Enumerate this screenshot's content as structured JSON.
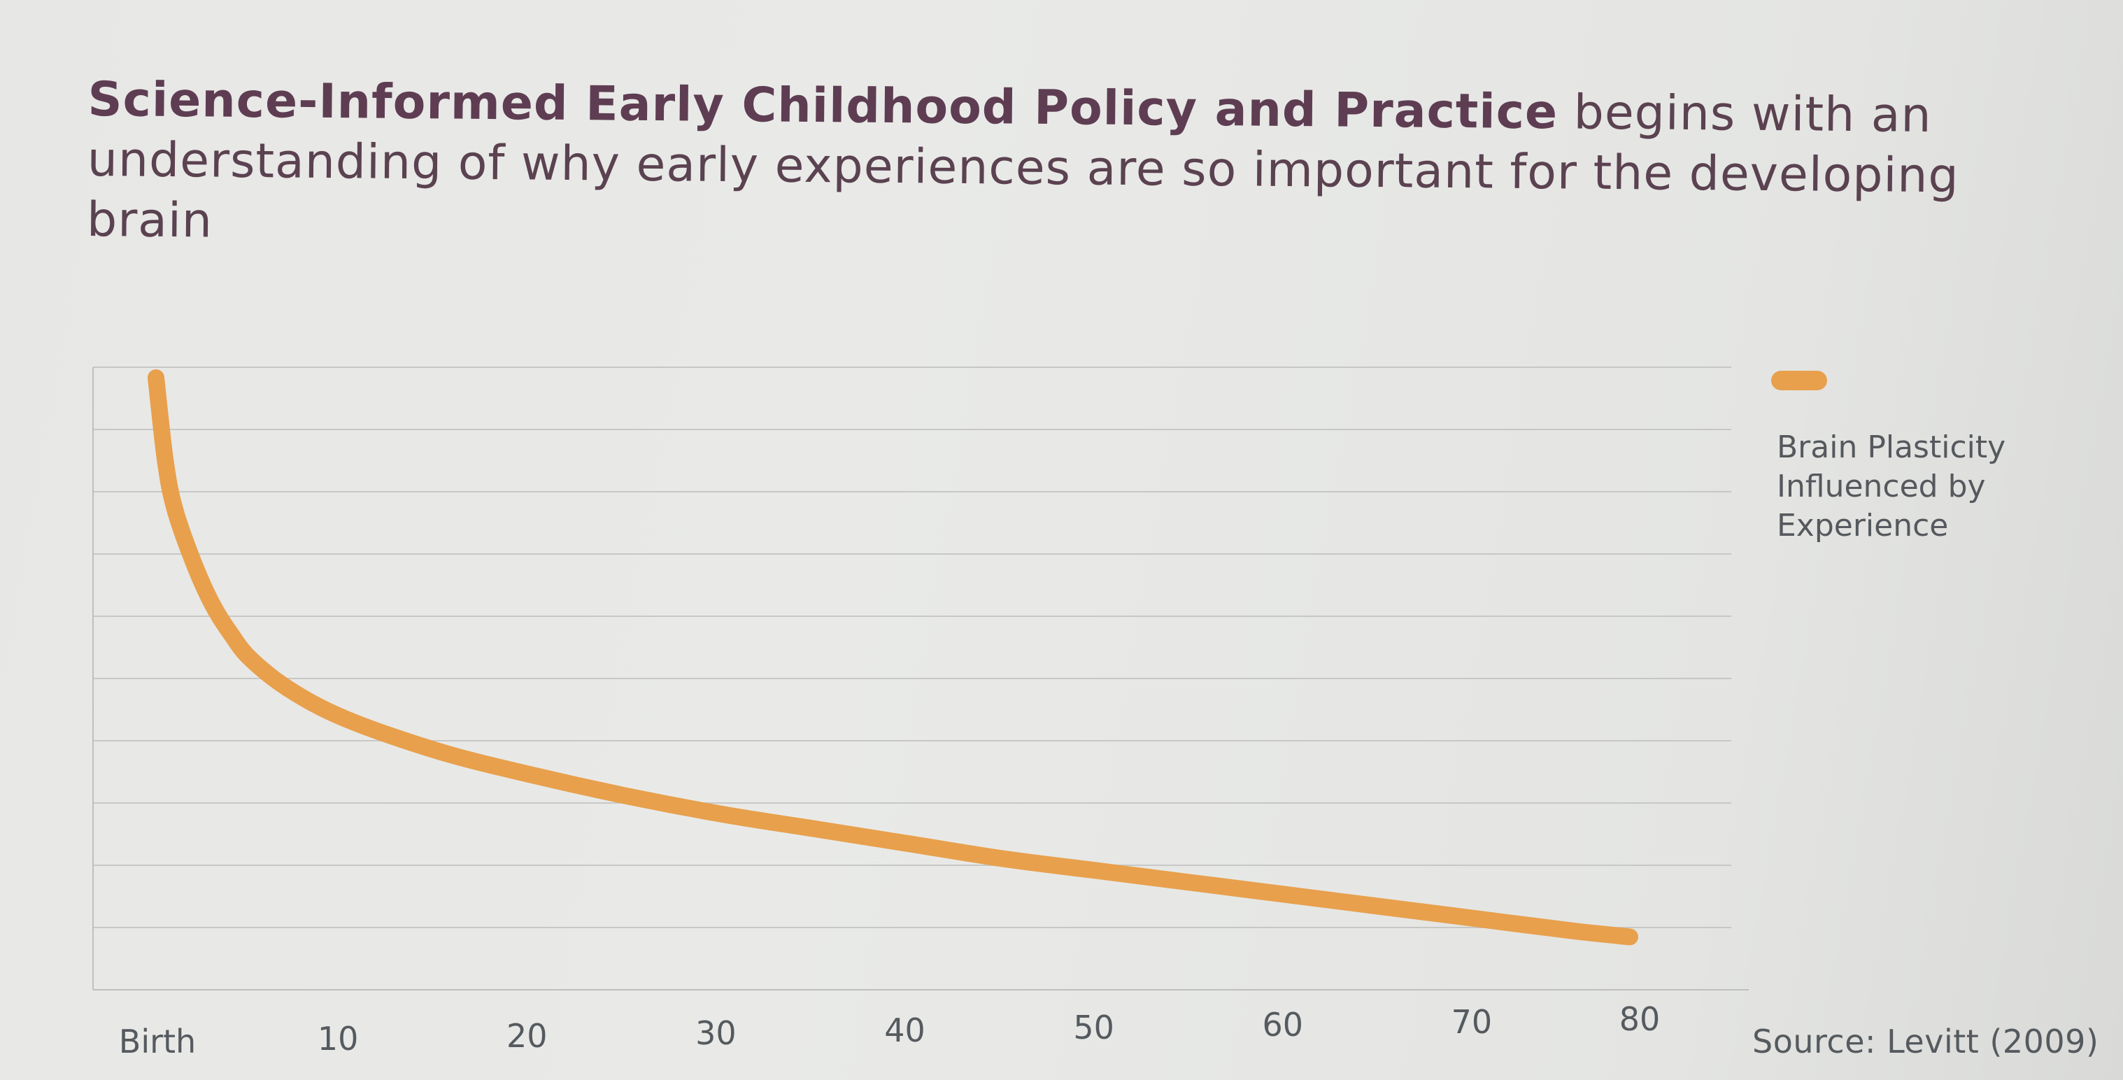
{
  "slide": {
    "headline_bold": "Science-Informed Early Childhood Policy and Practice",
    "headline_regular": " begins with an understanding of why early experiences are so important for the developing brain",
    "source": "Source: Levitt (2009)"
  },
  "chart_data": {
    "type": "line",
    "title": "",
    "xlabel": "",
    "ylabel": "",
    "x_tick_labels": [
      "Birth",
      "10",
      "20",
      "30",
      "40",
      "50",
      "60",
      "70",
      "80"
    ],
    "xlim": [
      0,
      86
    ],
    "ylim": [
      0,
      10
    ],
    "grid": true,
    "legend_placement": "right",
    "series": [
      {
        "name": "Brain Plasticity Influenced by Experience",
        "color": "#e8a04c",
        "x": [
          0,
          0.5,
          1,
          2,
          3,
          4,
          5,
          7,
          10,
          15,
          20,
          25,
          30,
          35,
          40,
          45,
          50,
          55,
          60,
          65,
          70,
          75,
          78
        ],
        "y": [
          10.0,
          8.6,
          7.8,
          6.9,
          6.2,
          5.7,
          5.3,
          4.8,
          4.3,
          3.75,
          3.35,
          3.0,
          2.7,
          2.45,
          2.2,
          1.95,
          1.75,
          1.55,
          1.35,
          1.15,
          0.95,
          0.75,
          0.65
        ]
      }
    ]
  }
}
